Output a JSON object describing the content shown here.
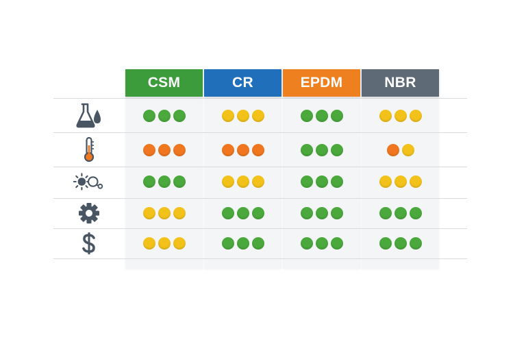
{
  "colors": {
    "green": "#4aa83c",
    "yellow": "#f2c21b",
    "orange": "#f0771f",
    "icon": "#4a5563"
  },
  "columns": [
    {
      "label": "CSM",
      "color": "#3c9c3c"
    },
    {
      "label": "CR",
      "color": "#1f6fba"
    },
    {
      "label": "EPDM",
      "color": "#ef8020"
    },
    {
      "label": "NBR",
      "color": "#5e6b76"
    }
  ],
  "rows": [
    {
      "icon": "chemical-flask-icon",
      "ratings": [
        [
          "green",
          "green",
          "green"
        ],
        [
          "yellow",
          "yellow",
          "yellow"
        ],
        [
          "green",
          "green",
          "green"
        ],
        [
          "yellow",
          "yellow",
          "yellow"
        ]
      ]
    },
    {
      "icon": "thermometer-icon",
      "ratings": [
        [
          "orange",
          "orange",
          "orange"
        ],
        [
          "orange",
          "orange",
          "orange"
        ],
        [
          "green",
          "green",
          "green"
        ],
        [
          "orange",
          "yellow"
        ]
      ]
    },
    {
      "icon": "weather-sun-ozone-icon",
      "ratings": [
        [
          "green",
          "green",
          "green"
        ],
        [
          "yellow",
          "yellow",
          "yellow"
        ],
        [
          "green",
          "green",
          "green"
        ],
        [
          "yellow",
          "yellow",
          "yellow"
        ]
      ]
    },
    {
      "icon": "gear-icon",
      "ratings": [
        [
          "yellow",
          "yellow",
          "yellow"
        ],
        [
          "green",
          "green",
          "green"
        ],
        [
          "green",
          "green",
          "green"
        ],
        [
          "green",
          "green",
          "green"
        ]
      ]
    },
    {
      "icon": "dollar-icon",
      "ratings": [
        [
          "yellow",
          "yellow",
          "yellow"
        ],
        [
          "green",
          "green",
          "green"
        ],
        [
          "green",
          "green",
          "green"
        ],
        [
          "green",
          "green",
          "green"
        ]
      ]
    }
  ]
}
